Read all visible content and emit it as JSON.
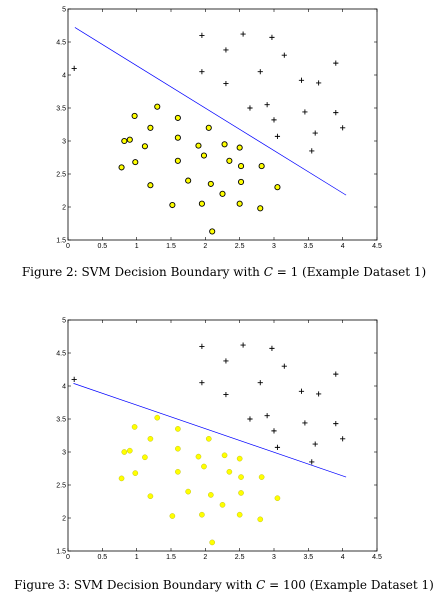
{
  "captions": [
    {
      "pre": "Figure 2: SVM Decision Boundary with ",
      "var": "C",
      "post": " = 1 (Example Dataset 1)"
    },
    {
      "pre": "Figure 3: SVM Decision Boundary with ",
      "var": "C",
      "post": " = 100 (Example Dataset 1)"
    }
  ],
  "chart_data": [
    {
      "type": "scatter",
      "title": "",
      "xlabel": "",
      "ylabel": "",
      "xlim": [
        0,
        4.5
      ],
      "ylim": [
        1.5,
        5
      ],
      "xticks": [
        "0",
        "0.5",
        "1",
        "1.5",
        "2",
        "2.5",
        "3",
        "3.5",
        "4",
        "4.5"
      ],
      "yticks": [
        "1.5",
        "2",
        "2.5",
        "3",
        "3.5",
        "4",
        "4.5",
        "5"
      ],
      "positive_marker": "plus",
      "negative_marker": "circle",
      "negative_fill": "#ffff00",
      "boundary_color": "#0000ff",
      "boundary": [
        [
          0.1,
          4.72
        ],
        [
          4.05,
          2.18
        ]
      ],
      "positive": [
        [
          0.09,
          4.1
        ],
        [
          1.95,
          4.6
        ],
        [
          2.55,
          4.62
        ],
        [
          2.3,
          4.38
        ],
        [
          2.97,
          4.57
        ],
        [
          3.15,
          4.3
        ],
        [
          3.9,
          4.18
        ],
        [
          1.95,
          4.05
        ],
        [
          2.8,
          4.05
        ],
        [
          2.3,
          3.87
        ],
        [
          3.4,
          3.92
        ],
        [
          3.65,
          3.88
        ],
        [
          2.65,
          3.5
        ],
        [
          2.9,
          3.55
        ],
        [
          3.0,
          3.32
        ],
        [
          3.45,
          3.44
        ],
        [
          3.05,
          3.07
        ],
        [
          3.6,
          3.12
        ],
        [
          3.9,
          3.43
        ],
        [
          4.0,
          3.2
        ],
        [
          3.55,
          2.85
        ]
      ],
      "negative": [
        [
          1.3,
          3.52
        ],
        [
          1.6,
          3.35
        ],
        [
          0.97,
          3.38
        ],
        [
          0.82,
          3.0
        ],
        [
          0.9,
          3.02
        ],
        [
          1.2,
          3.2
        ],
        [
          1.6,
          3.05
        ],
        [
          2.05,
          3.2
        ],
        [
          1.9,
          2.93
        ],
        [
          2.28,
          2.95
        ],
        [
          2.5,
          2.9
        ],
        [
          1.12,
          2.92
        ],
        [
          1.98,
          2.78
        ],
        [
          2.35,
          2.7
        ],
        [
          2.52,
          2.62
        ],
        [
          2.82,
          2.62
        ],
        [
          1.6,
          2.7
        ],
        [
          0.98,
          2.68
        ],
        [
          0.78,
          2.6
        ],
        [
          1.75,
          2.4
        ],
        [
          2.08,
          2.35
        ],
        [
          2.52,
          2.38
        ],
        [
          3.05,
          2.3
        ],
        [
          1.2,
          2.33
        ],
        [
          1.95,
          2.05
        ],
        [
          1.52,
          2.03
        ],
        [
          2.25,
          2.2
        ],
        [
          2.5,
          2.05
        ],
        [
          2.8,
          1.98
        ],
        [
          2.1,
          1.63
        ]
      ]
    },
    {
      "type": "scatter",
      "title": "",
      "xlabel": "",
      "ylabel": "",
      "xlim": [
        0,
        4.5
      ],
      "ylim": [
        1.5,
        5
      ],
      "xticks": [
        "0",
        "0.5",
        "1",
        "1.5",
        "2",
        "2.5",
        "3",
        "3.5",
        "4",
        "4.5"
      ],
      "yticks": [
        "1.5",
        "2",
        "2.5",
        "3",
        "3.5",
        "4",
        "4.5",
        "5"
      ],
      "positive_marker": "plus",
      "negative_marker": "circle",
      "negative_fill": "#ffff00",
      "boundary_color": "#0000ff",
      "boundary": [
        [
          0.08,
          4.04
        ],
        [
          4.05,
          2.62
        ]
      ],
      "positive": [
        [
          0.09,
          4.1
        ],
        [
          1.95,
          4.6
        ],
        [
          2.55,
          4.62
        ],
        [
          2.3,
          4.38
        ],
        [
          2.97,
          4.57
        ],
        [
          3.15,
          4.3
        ],
        [
          3.9,
          4.18
        ],
        [
          1.95,
          4.05
        ],
        [
          2.8,
          4.05
        ],
        [
          2.3,
          3.87
        ],
        [
          3.4,
          3.92
        ],
        [
          3.65,
          3.88
        ],
        [
          2.65,
          3.5
        ],
        [
          2.9,
          3.55
        ],
        [
          3.0,
          3.32
        ],
        [
          3.45,
          3.44
        ],
        [
          3.05,
          3.07
        ],
        [
          3.6,
          3.12
        ],
        [
          3.9,
          3.43
        ],
        [
          4.0,
          3.2
        ],
        [
          3.55,
          2.85
        ]
      ],
      "negative": [
        [
          1.3,
          3.52
        ],
        [
          1.6,
          3.35
        ],
        [
          0.97,
          3.38
        ],
        [
          0.82,
          3.0
        ],
        [
          0.9,
          3.02
        ],
        [
          1.2,
          3.2
        ],
        [
          1.6,
          3.05
        ],
        [
          2.05,
          3.2
        ],
        [
          1.9,
          2.93
        ],
        [
          2.28,
          2.95
        ],
        [
          2.5,
          2.9
        ],
        [
          1.12,
          2.92
        ],
        [
          1.98,
          2.78
        ],
        [
          2.35,
          2.7
        ],
        [
          2.52,
          2.62
        ],
        [
          2.82,
          2.62
        ],
        [
          1.6,
          2.7
        ],
        [
          0.98,
          2.68
        ],
        [
          0.78,
          2.6
        ],
        [
          1.75,
          2.4
        ],
        [
          2.08,
          2.35
        ],
        [
          2.52,
          2.38
        ],
        [
          3.05,
          2.3
        ],
        [
          1.2,
          2.33
        ],
        [
          1.95,
          2.05
        ],
        [
          1.52,
          2.03
        ],
        [
          2.25,
          2.2
        ],
        [
          2.5,
          2.05
        ],
        [
          2.8,
          1.98
        ],
        [
          2.1,
          1.63
        ]
      ]
    }
  ]
}
